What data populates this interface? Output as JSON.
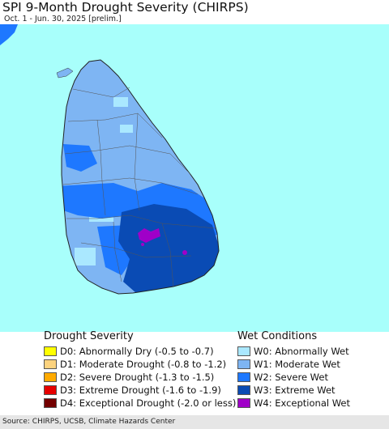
{
  "title": "SPI 9-Month Drought Severity (CHIRPS)",
  "subtitle": "Oct. 1 - Jun. 30, 2025 [prelim.]",
  "colors": {
    "ocean": "#a8fffb",
    "land_base": "#7eb5f3"
  },
  "drought_legend": {
    "heading": "Drought Severity",
    "items": [
      {
        "label": "D0: Abnormally Dry (-0.5 to -0.7)",
        "color": "#ffff00"
      },
      {
        "label": "D1: Moderate Drought (-0.8 to -1.2)",
        "color": "#fcd37f"
      },
      {
        "label": "D2: Severe Drought (-1.3 to -1.5)",
        "color": "#ffaa00"
      },
      {
        "label": "D3: Extreme Drought (-1.6 to -1.9)",
        "color": "#e60000"
      },
      {
        "label": "D4: Exceptional Drought (-2.0 or less)",
        "color": "#730000"
      }
    ]
  },
  "wet_legend": {
    "heading": "Wet Conditions",
    "items": [
      {
        "label": "W0: Abnormally Wet",
        "color": "#aae8ff"
      },
      {
        "label": "W1: Moderate Wet",
        "color": "#7eb5f3"
      },
      {
        "label": "W2: Severe Wet",
        "color": "#1e78ff"
      },
      {
        "label": "W3: Extreme Wet",
        "color": "#0a4bb4"
      },
      {
        "label": "W4: Exceptional Wet",
        "color": "#a000c8"
      }
    ]
  },
  "footer": "Source: CHIRPS, UCSB, Climate Hazards Center"
}
